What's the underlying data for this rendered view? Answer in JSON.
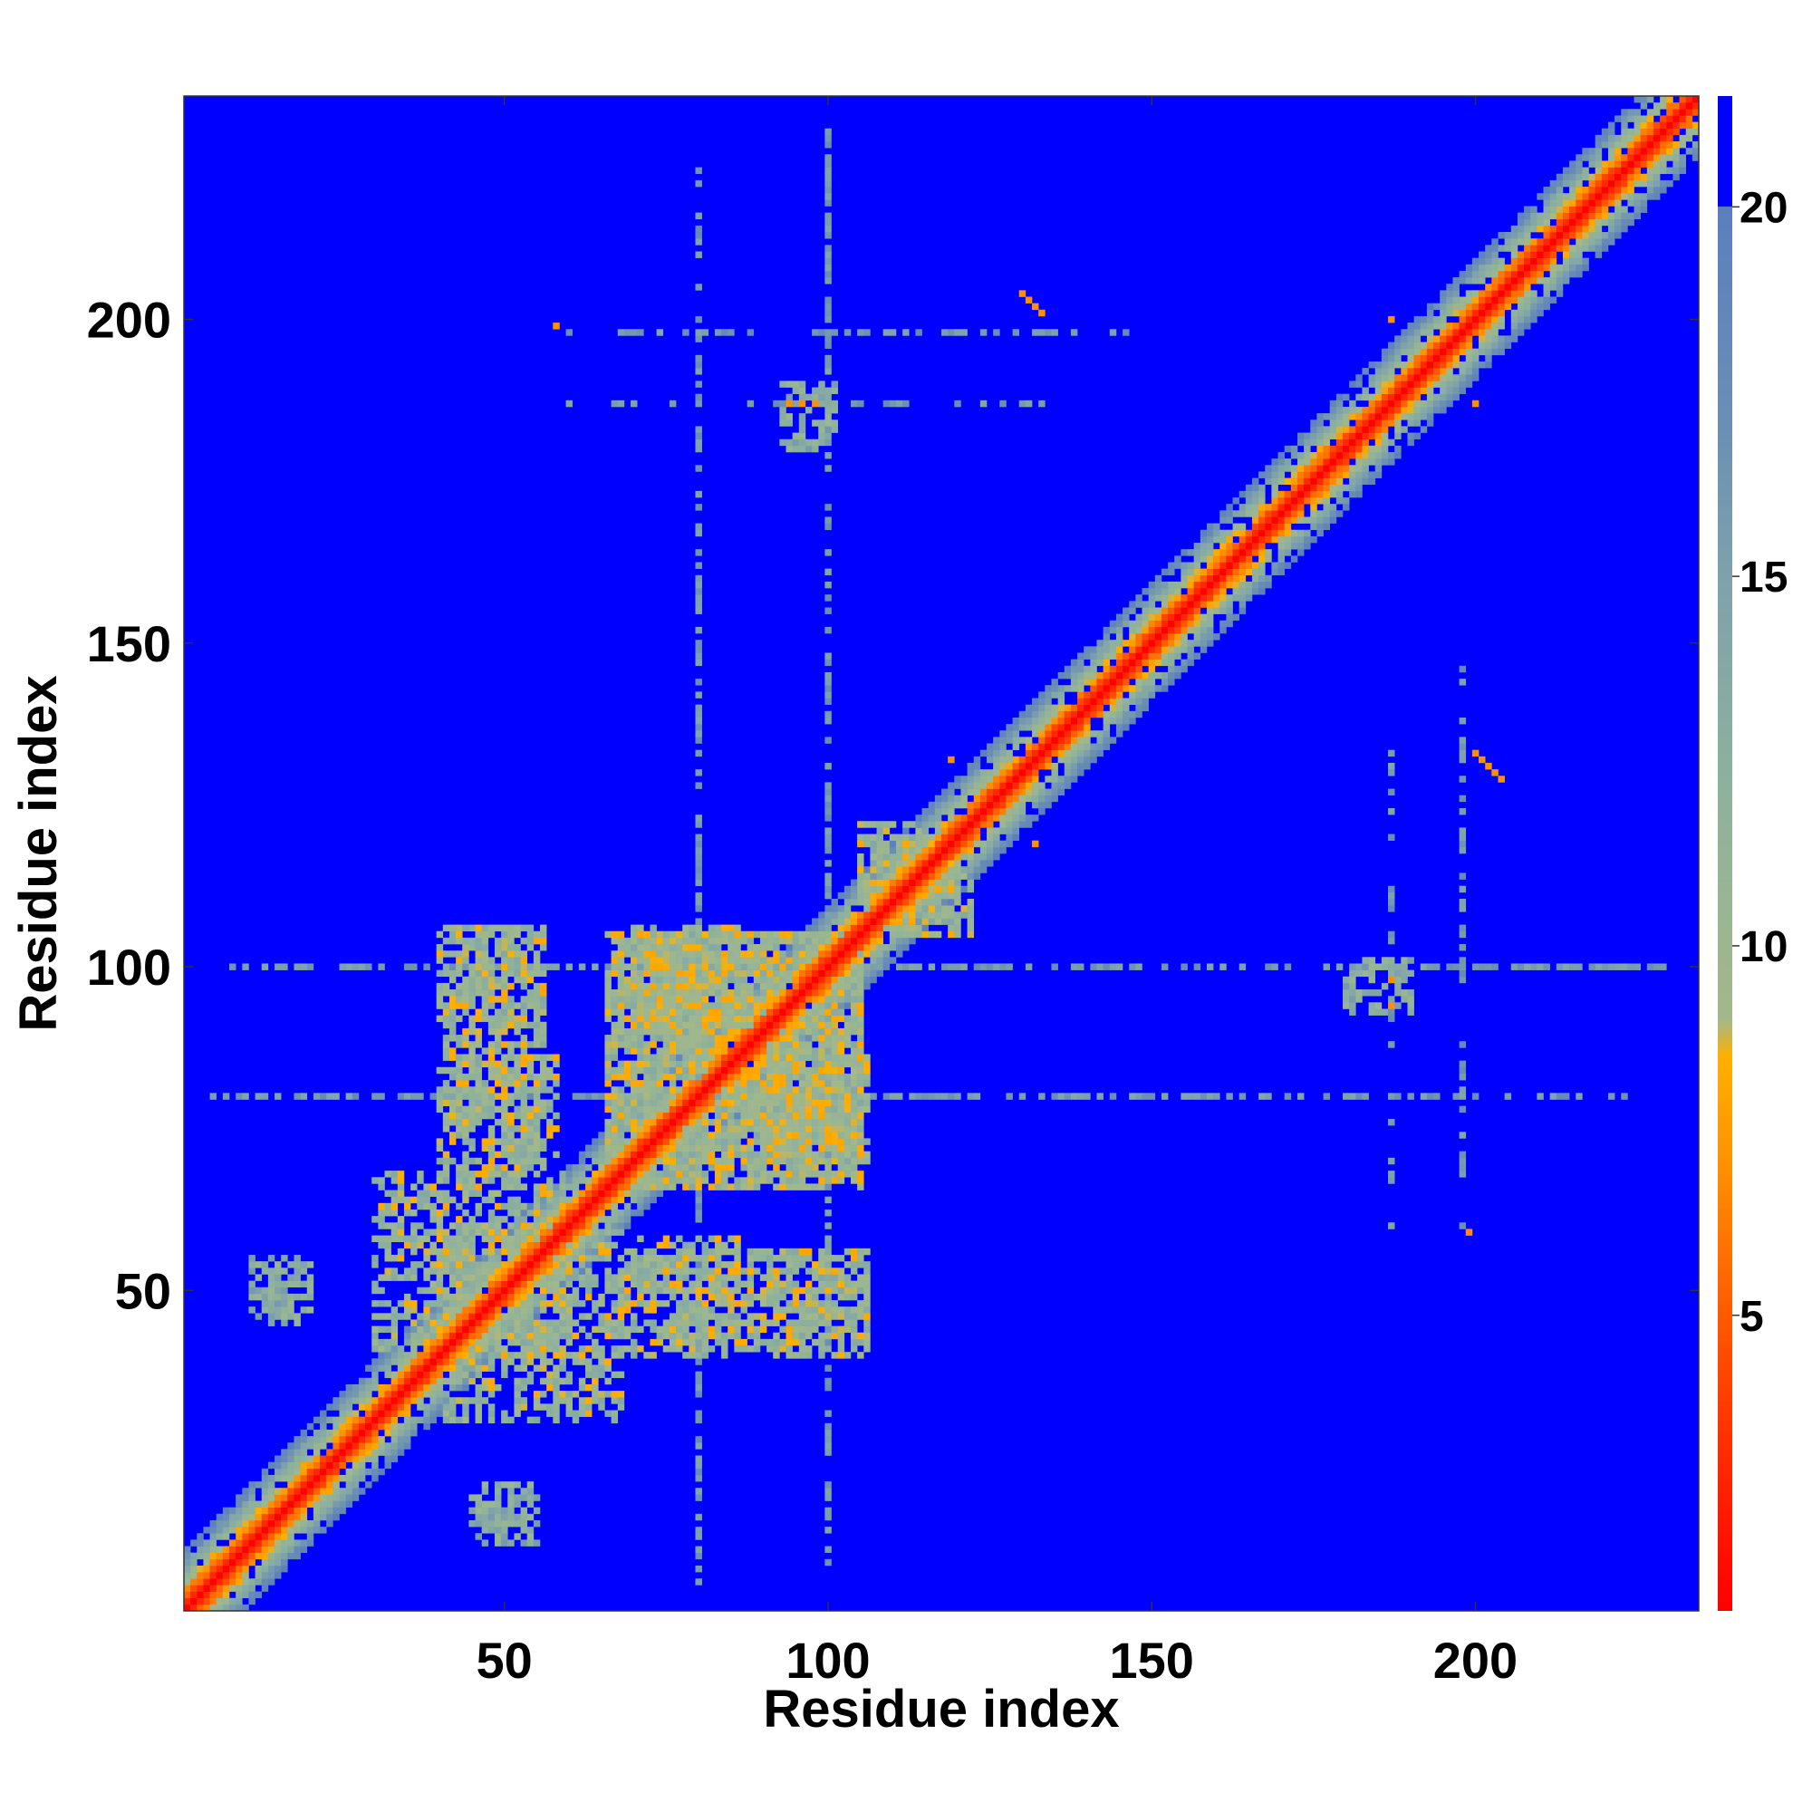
{
  "chart_data": {
    "type": "heatmap",
    "title": "",
    "xlabel": "Residue index",
    "ylabel": "Residue index",
    "xlim": [
      0.5,
      234.5
    ],
    "ylim": [
      0.5,
      234.5
    ],
    "x_ticks": [
      50,
      100,
      150,
      200
    ],
    "y_ticks": [
      50,
      100,
      150,
      200
    ],
    "x_tick_labels": [
      "50",
      "100",
      "150",
      "200"
    ],
    "y_tick_labels": [
      "50",
      "100",
      "150",
      "200"
    ],
    "n_residues": 234,
    "colorbar": {
      "range": [
        1,
        21.5
      ],
      "ticks": [
        5,
        10,
        15,
        20
      ],
      "tick_labels": [
        "5",
        "10",
        "15",
        "20"
      ],
      "stops": [
        {
          "value": 1,
          "color": "#ff0000"
        },
        {
          "value": 3,
          "color": "#ff2800"
        },
        {
          "value": 5,
          "color": "#ff5a00"
        },
        {
          "value": 7,
          "color": "#ff9000"
        },
        {
          "value": 8.5,
          "color": "#ffb000"
        },
        {
          "value": 9,
          "color": "#a3b88a"
        },
        {
          "value": 12,
          "color": "#8fb29c"
        },
        {
          "value": 15,
          "color": "#7fa1ac"
        },
        {
          "value": 17,
          "color": "#6b8fb4"
        },
        {
          "value": 20,
          "color": "#5b7fbd"
        },
        {
          "value": 20.01,
          "color": "#0000ff"
        },
        {
          "value": 21.5,
          "color": "#0000ff"
        }
      ]
    },
    "background_value": 21,
    "diagonal_band": {
      "near_values": [
        1,
        3,
        5,
        7,
        9,
        11,
        13,
        15,
        17,
        19
      ],
      "width": 10
    },
    "contact_blocks": [
      {
        "x": [
          40,
          68
        ],
        "y": [
          30,
          60
        ],
        "value": 11
      },
      {
        "x": [
          66,
          105
        ],
        "y": [
          66,
          105
        ],
        "value": 11
      },
      {
        "x": [
          70,
          86
        ],
        "y": [
          42,
          58
        ],
        "value": 11
      },
      {
        "x": [
          88,
          106
        ],
        "y": [
          40,
          56
        ],
        "value": 11
      },
      {
        "x": [
          40,
          56
        ],
        "y": [
          68,
          88
        ],
        "value": 11
      },
      {
        "x": [
          40,
          56
        ],
        "y": [
          90,
          106
        ],
        "value": 11
      },
      {
        "x": [
          70,
          86
        ],
        "y": [
          90,
          106
        ],
        "value": 11
      },
      {
        "x": [
          88,
          104
        ],
        "y": [
          70,
          90
        ],
        "value": 11
      },
      {
        "x": [
          105,
          120
        ],
        "y": [
          105,
          122
        ],
        "value": 11
      },
      {
        "x": [
          11,
          18
        ],
        "y": [
          46,
          55
        ],
        "value": 13
      },
      {
        "x": [
          45,
          54
        ],
        "y": [
          13,
          20
        ],
        "value": 13
      },
      {
        "x": [
          180,
          190
        ],
        "y": [
          93,
          101
        ],
        "value": 13
      }
    ],
    "contact_lines": [
      {
        "orientation": "h",
        "y": 100,
        "x": [
          6,
          225
        ],
        "value": 16
      },
      {
        "orientation": "h",
        "y": 80,
        "x": [
          5,
          225
        ],
        "value": 16
      },
      {
        "orientation": "v",
        "x": 100,
        "y": [
          5,
          230
        ],
        "value": 16
      },
      {
        "orientation": "v",
        "x": 80,
        "y": [
          5,
          205
        ],
        "value": 16
      },
      {
        "orientation": "v",
        "x": 198,
        "y": [
          60,
          150
        ],
        "value": 16
      },
      {
        "orientation": "v",
        "x": 187,
        "y": [
          60,
          135
        ],
        "value": 16
      }
    ],
    "hot_points": [
      {
        "x": 58,
        "y": 199,
        "value": 7
      },
      {
        "x": 130,
        "y": 204,
        "value": 7
      },
      {
        "x": 131,
        "y": 203,
        "value": 7
      },
      {
        "x": 132,
        "y": 202,
        "value": 7
      },
      {
        "x": 133,
        "y": 201,
        "value": 7
      },
      {
        "x": 94,
        "y": 187,
        "value": 7
      },
      {
        "x": 96,
        "y": 187,
        "value": 7
      },
      {
        "x": 98,
        "y": 187,
        "value": 7
      },
      {
        "x": 119,
        "y": 132,
        "value": 7
      },
      {
        "x": 200,
        "y": 133,
        "value": 7
      },
      {
        "x": 201,
        "y": 132,
        "value": 7
      },
      {
        "x": 202,
        "y": 131,
        "value": 7
      },
      {
        "x": 203,
        "y": 130,
        "value": 7
      },
      {
        "x": 204,
        "y": 129,
        "value": 7
      },
      {
        "x": 187,
        "y": 200,
        "value": 7
      },
      {
        "x": 200,
        "y": 187,
        "value": 7
      },
      {
        "x": 199,
        "y": 59,
        "value": 7
      },
      {
        "x": 187,
        "y": 94,
        "value": 7
      },
      {
        "x": 187,
        "y": 98,
        "value": 7
      },
      {
        "x": 132,
        "y": 119,
        "value": 7
      }
    ]
  }
}
